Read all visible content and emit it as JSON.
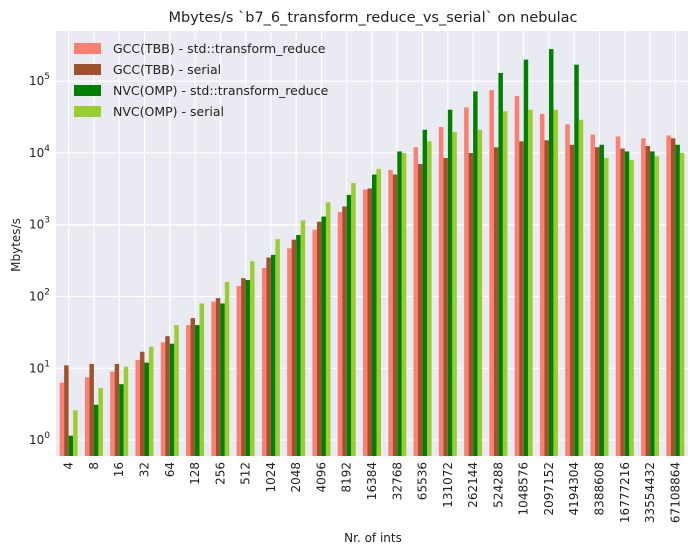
{
  "chart_data": {
    "type": "bar",
    "title": "Mbytes/s `b7_6_transform_reduce_vs_serial` on nebulac",
    "xlabel": "Nr. of ints",
    "ylabel": "Mbytes/s",
    "yscale": "log",
    "ylim": [
      0.6,
      500000
    ],
    "grid": true,
    "background": "#eaeaf2",
    "legend_position": "top-left",
    "categories": [
      "4",
      "8",
      "16",
      "32",
      "64",
      "128",
      "256",
      "512",
      "1024",
      "2048",
      "4096",
      "8192",
      "16384",
      "32768",
      "65536",
      "131072",
      "262144",
      "524288",
      "1048576",
      "2097152",
      "4194304",
      "8388608",
      "16777216",
      "33554432",
      "67108864"
    ],
    "yticks": [
      {
        "value": 1,
        "label": "10^0"
      },
      {
        "value": 10,
        "label": "10^1"
      },
      {
        "value": 100,
        "label": "10^2"
      },
      {
        "value": 1000,
        "label": "10^3"
      },
      {
        "value": 10000,
        "label": "10^4"
      },
      {
        "value": 100000,
        "label": "10^5"
      }
    ],
    "series": [
      {
        "name": "GCC(TBB) - std::transform_reduce",
        "color": "#fa8072",
        "values": [
          6.3,
          7.5,
          9,
          13,
          23,
          40,
          85,
          140,
          250,
          470,
          850,
          1500,
          3100,
          5800,
          12000,
          23000,
          43000,
          75000,
          62000,
          35000,
          25000,
          18000,
          17000,
          16000,
          17500
        ]
      },
      {
        "name": "GCC(TBB) - serial",
        "color": "#a0522d",
        "values": [
          11,
          11.5,
          11.5,
          17,
          28,
          50,
          95,
          180,
          350,
          620,
          1100,
          1800,
          3200,
          5000,
          7000,
          8500,
          10000,
          12000,
          14500,
          15000,
          13000,
          12000,
          11500,
          12500,
          16000
        ]
      },
      {
        "name": "NVC(OMP) - std::transform_reduce",
        "color": "#008000",
        "values": [
          1.15,
          3.1,
          6,
          12,
          22,
          40,
          80,
          170,
          380,
          720,
          1300,
          2600,
          5000,
          10500,
          21000,
          40000,
          72000,
          130000,
          200000,
          280000,
          170000,
          13000,
          10500,
          10500,
          13000
        ]
      },
      {
        "name": "NVC(OMP) - serial",
        "color": "#9acd32",
        "values": [
          2.6,
          5.3,
          10.5,
          20,
          40,
          80,
          160,
          310,
          630,
          1150,
          2050,
          3800,
          6000,
          10000,
          14500,
          19500,
          21000,
          38000,
          40000,
          40000,
          29000,
          8500,
          8000,
          9000,
          10000
        ]
      }
    ]
  }
}
